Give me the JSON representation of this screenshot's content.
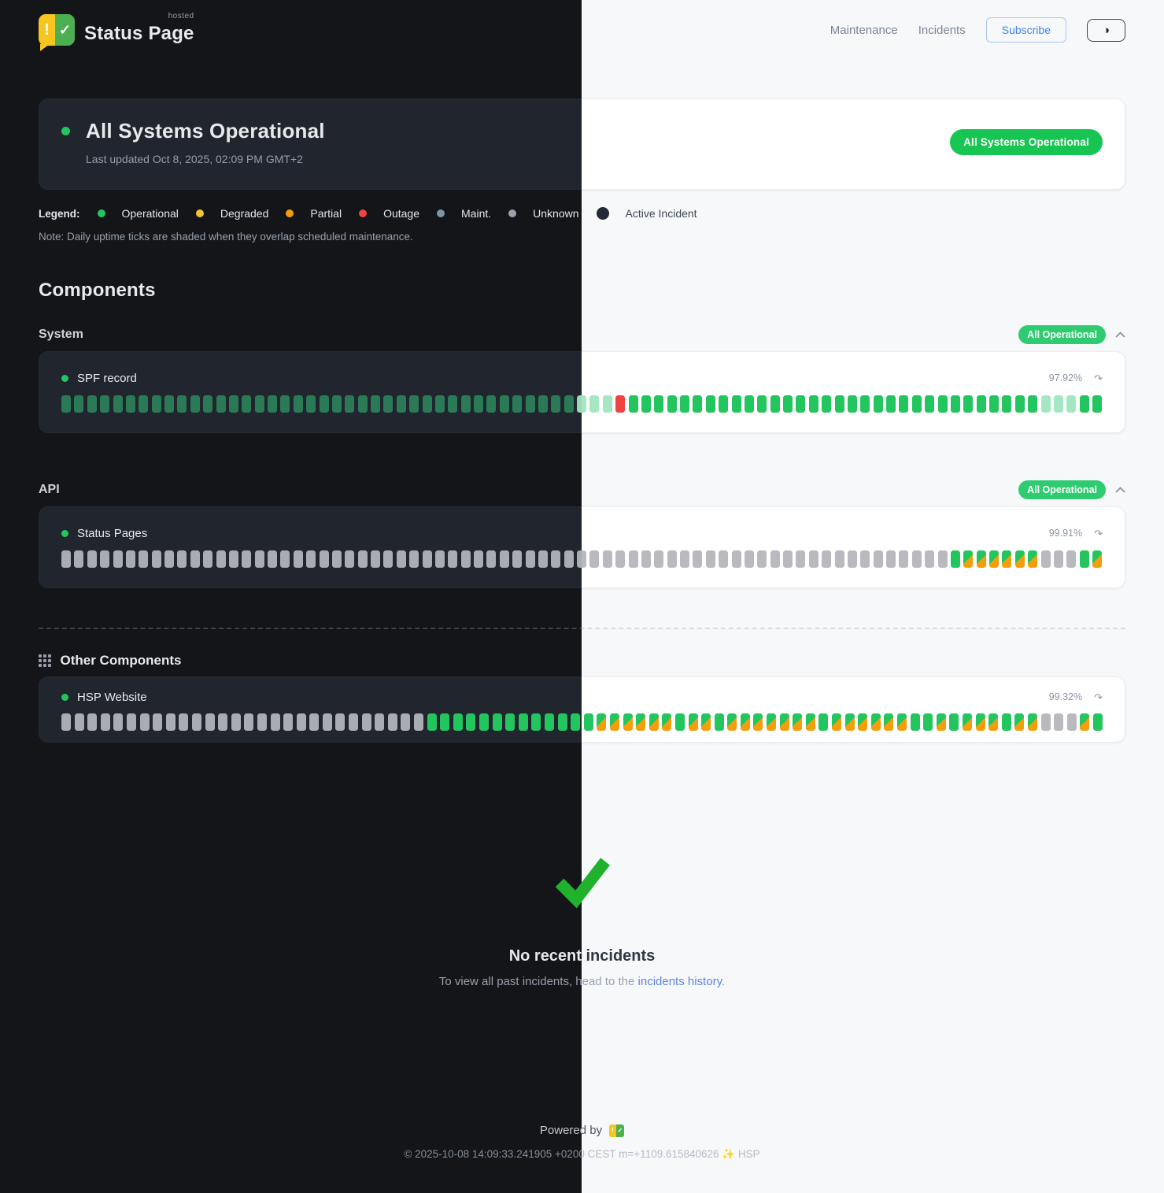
{
  "brand": {
    "status_word": "Status",
    "page_word": "Page",
    "hosted_label": "hosted",
    "exclaim": "!",
    "check": "✓"
  },
  "nav": {
    "maintenance": "Maintenance",
    "incidents": "Incidents",
    "subscribe": "Subscribe",
    "theme_icon": "◑"
  },
  "hero": {
    "title": "All Systems Operational",
    "last_updated": "Last updated Oct 8, 2025, 02:09 PM GMT+2",
    "badge": "All Systems Operational"
  },
  "legend": {
    "label": "Legend:",
    "items": [
      {
        "label": "Operational",
        "color": "#22c55e"
      },
      {
        "label": "Degraded",
        "color": "#f4c430"
      },
      {
        "label": "Partial",
        "color": "#f59e0b"
      },
      {
        "label": "Outage",
        "color": "#ef4444"
      },
      {
        "label": "Maint.",
        "color": "#7e95a8"
      },
      {
        "label": "Unknown",
        "color": "#9ca3af"
      },
      {
        "label": "Active Incident",
        "color": "#242b36"
      }
    ],
    "note": "Note: Daily uptime ticks are shaded when they overlap scheduled maintenance."
  },
  "components": {
    "heading": "Components",
    "groups": [
      {
        "name": "System",
        "badge": "All Operational",
        "rows": [
          {
            "name": "SPF record",
            "uptime": "97.92%",
            "ticks": "oooooooooooooooooooooooooooooooooooooooommmroooooooooooooooooooooooooooooooommmoo"
          }
        ]
      },
      {
        "name": "API",
        "badge": "All Operational",
        "rows": [
          {
            "name": "Status Pages",
            "uptime": "99.91%",
            "ticks": "uuuuuuuuuuuuuuuuuuuuuuuuuuuuuuuuuuuuuuuuuuuuuuuuuuuuuuuuuuuuuuuuuuuuuoppppppuuuop"
          }
        ]
      }
    ],
    "other": {
      "heading": "Other Components",
      "rows": [
        {
          "name": "HSP Website",
          "uptime": "99.32%",
          "ticks": "uuuuuuuuuuuuuuuuuuuuuuuuuuuuoooooooooooooppppppoppopppppppoppppppoopopppoppuuupo"
        }
      ]
    }
  },
  "tick_key": {
    "o": "operational",
    "m": "operational-shaded-maintenance",
    "r": "outage",
    "u": "unknown",
    "p": "partial-shaded-maintenance"
  },
  "incidents_section": {
    "title": "No recent incidents",
    "text_before_link": "To view all past incidents, head to the ",
    "link_text": "incidents history",
    "text_after_link": "."
  },
  "footer": {
    "powered_by": "Powered by",
    "copyright": "© 2025-10-08 14:09:33.241905 +0200 CEST m=+1109.615840626 ✨ HSP"
  },
  "icons": {
    "refresh": "↷"
  },
  "colors": {
    "operational_green": "#22c55e",
    "operational_green_dark_theme": "#2b7a57",
    "shaded_green": "#a5e7c2",
    "outage_red": "#ef4444",
    "partial_orange": "#f59e0b",
    "hero_badge_green": "#17c553",
    "mini_badge_green": "#2ecb70",
    "link_blue": "#5b85ea",
    "subscribe_blue": "#4285f4",
    "big_check_green": "#20b22c"
  }
}
